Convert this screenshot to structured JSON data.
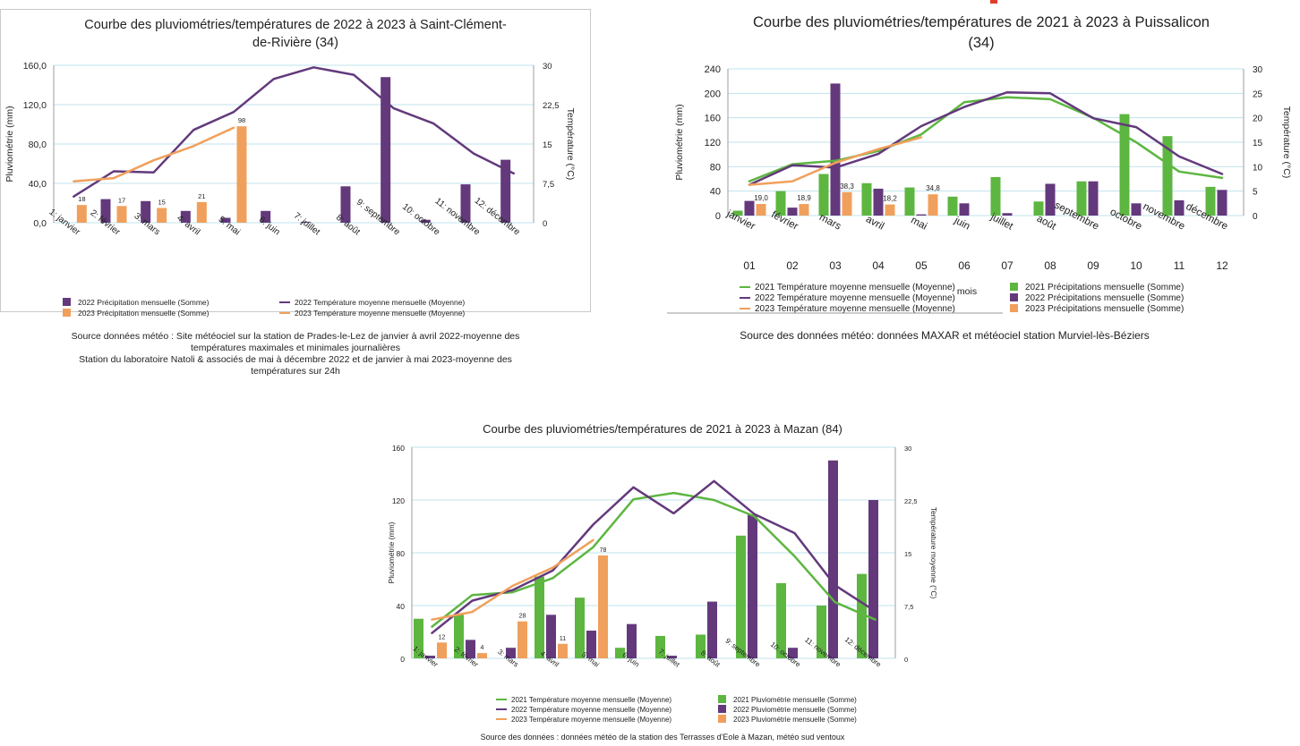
{
  "colors": {
    "purple": "#63397c",
    "orange": "#f0a05c",
    "green": "#5db640",
    "grid": "#bfe3ec",
    "accent": "#e23b2c"
  },
  "chart_data": [
    {
      "type": "bar",
      "title": "Courbe des pluviométries/températures de 2022 à 2023 à Saint-Clément-de-Rivière (34)",
      "title_lines": [
        "Courbe des pluviométries/températures de 2022 à 2023 à Saint-Clément-",
        "de-Rivière (34)"
      ],
      "ylabel": "Pluviométrie (mm)",
      "y2label": "Température (°C)",
      "ylim": [
        0,
        160
      ],
      "y2lim": [
        0,
        30
      ],
      "yticks": [
        "0,0",
        "40,0",
        "80,0",
        "120,0",
        "160,0"
      ],
      "y2ticks": [
        "0",
        "7,5",
        "15",
        "22,5",
        "30"
      ],
      "grid": true,
      "legend_position": "bottom",
      "categories": [
        "1: janvier",
        "2: février",
        "3: mars",
        "4: avril",
        "5: mai",
        "6: juin",
        "7: juillet",
        "8: août",
        "9: septembre",
        "10: octobre",
        "11: novembre",
        "12: décembre"
      ],
      "bars": [
        {
          "name": "2022 Précipitation mensuelle (Somme)",
          "color": "#63397c",
          "values": [
            0,
            24,
            22,
            12,
            5,
            12,
            1,
            37,
            148,
            3,
            39,
            64
          ],
          "labels": []
        },
        {
          "name": "2023 Précipitation mensuelle (Somme)",
          "color": "#f0a05c",
          "values": [
            18,
            17,
            15,
            21,
            98,
            null,
            null,
            null,
            null,
            null,
            null,
            null
          ],
          "labels": [
            "18",
            "17",
            "15",
            "21",
            "98",
            "",
            "",
            "",
            "",
            "",
            "",
            ""
          ]
        }
      ],
      "lines": [
        {
          "name": "2022 Température moyenne mensuelle (Moyenne)",
          "color": "#63397c",
          "values": [
            5.0,
            9.8,
            9.6,
            17.7,
            21.1,
            27.4,
            29.6,
            28.2,
            21.8,
            18.9,
            13.2,
            9.4
          ]
        },
        {
          "name": "2023 Température moyenne mensuelle (Moyenne)",
          "color": "#f0a05c",
          "values": [
            7.9,
            8.5,
            11.9,
            14.6,
            18.1,
            null,
            null,
            null,
            null,
            null,
            null,
            null
          ]
        }
      ],
      "legend_order": [
        0,
        2,
        1,
        3
      ],
      "source_lines": [
        "Source données météo : Site météociel sur la station de Prades-le-Lez de janvier à avril 2022-moyenne des",
        "températures maximales et minimales journalières",
        "Station du laboratoire Natoli & associés  de mai à décembre 2022 et de janvier à mai 2023-moyenne des",
        "températures sur 24h"
      ]
    },
    {
      "type": "bar",
      "title": "Courbe des pluviométries/températures de 2021 à 2023 à Puissalicon (34)",
      "title_lines": [
        "Courbe des pluviométries/températures de 2021 à 2023 à Puissalicon",
        "(34)"
      ],
      "ylabel": "Pluviométrie (mm)",
      "y2label": "Température (°C)",
      "xlabel": "mois",
      "ylim": [
        0,
        240
      ],
      "y2lim": [
        0,
        30
      ],
      "yticks": [
        "0",
        "40",
        "80",
        "120",
        "160",
        "200",
        "240"
      ],
      "y2ticks": [
        "0",
        "5",
        "10",
        "15",
        "20",
        "25",
        "30"
      ],
      "grid": true,
      "legend_position": "bottom",
      "categories": [
        "janvier",
        "février",
        "mars",
        "avril",
        "mai",
        "juin",
        "juillet",
        "août",
        "septembre",
        "octobre",
        "novembre",
        "décembre"
      ],
      "month_numbers": [
        "01",
        "02",
        "03",
        "04",
        "05",
        "06",
        "07",
        "08",
        "09",
        "10",
        "11",
        "12"
      ],
      "bars": [
        {
          "name": "2021 Précipitations mensuelle (Somme)",
          "color": "#5db640",
          "values": [
            8,
            40,
            68,
            53,
            46,
            31,
            63,
            23,
            56,
            166,
            130,
            47
          ],
          "labels": []
        },
        {
          "name": "2022 Précipitations mensuelle (Somme)",
          "color": "#63397c",
          "values": [
            24,
            13,
            216,
            44,
            2,
            20,
            4,
            52,
            56,
            20,
            25,
            42
          ],
          "labels": []
        },
        {
          "name": "2023 Précipitations mensuelle (Somme)",
          "color": "#f0a05c",
          "values": [
            19.0,
            18.9,
            38.3,
            18.2,
            34.8,
            null,
            null,
            null,
            null,
            null,
            null,
            null
          ],
          "labels": [
            "19,0",
            "18,9",
            "38,3",
            "18,2",
            "34,8",
            "",
            "",
            "",
            "",
            "",
            "",
            ""
          ]
        }
      ],
      "lines": [
        {
          "name": "2021 Température moyenne mensuelle (Moyenne)",
          "color": "#5db640",
          "values": [
            7.0,
            10.5,
            11.2,
            13.2,
            16.6,
            23.2,
            24.2,
            23.8,
            20.0,
            15.0,
            9.0,
            7.7
          ]
        },
        {
          "name": "2022 Température moyenne mensuelle (Moyenne)",
          "color": "#63397c",
          "values": [
            6.3,
            10.3,
            9.8,
            12.6,
            18.3,
            22.2,
            25.2,
            25.0,
            19.9,
            18.1,
            12.1,
            8.5
          ]
        },
        {
          "name": "2023 Température moyenne mensuelle (Moyenne)",
          "color": "#f0a05c",
          "values": [
            6.3,
            7.0,
            10.8,
            13.6,
            16.0,
            null,
            null,
            null,
            null,
            null,
            null,
            null
          ]
        }
      ],
      "legend_order": [
        0,
        3,
        1,
        4,
        2,
        5
      ],
      "source_lines": [
        "Source des données météo: données MAXAR et météociel station Murviel-lès-Béziers"
      ]
    },
    {
      "type": "bar",
      "title": "Courbe des pluviométries/températures de 2021 à 2023 à Mazan (84)",
      "title_lines": [
        "Courbe des pluviométries/températures de 2021 à 2023 à Mazan (84)"
      ],
      "ylabel": "Pluviométrie (mm)",
      "y2label": "Température moyenne (°C)",
      "ylim": [
        0,
        160
      ],
      "y2lim": [
        0,
        30
      ],
      "yticks": [
        "0",
        "40",
        "80",
        "120",
        "160"
      ],
      "y2ticks": [
        "0",
        "7,5",
        "15",
        "22,5",
        "30"
      ],
      "grid": true,
      "legend_position": "bottom",
      "categories": [
        "1: janvier",
        "2: février",
        "3: mars",
        "4: avril",
        "5: mai",
        "6: juin",
        "7: juillet",
        "8: août",
        "9: septembre",
        "10: octobre",
        "11: novembre",
        "12: décembre"
      ],
      "bars": [
        {
          "name": "2021 Pluviométrie mensuelle (Somme)",
          "color": "#5db640",
          "values": [
            30,
            33,
            0,
            62,
            46,
            8,
            17,
            18,
            93,
            57,
            40,
            64
          ],
          "labels": []
        },
        {
          "name": "2022 Pluviométrie mensuelle (Somme)",
          "color": "#63397c",
          "values": [
            2,
            14,
            8,
            33,
            21,
            26,
            2,
            43,
            109,
            8,
            150,
            120
          ],
          "labels": []
        },
        {
          "name": "2023 Pluviométrie mensuelle (Somme)",
          "color": "#f0a05c",
          "values": [
            12,
            4,
            28,
            11,
            78,
            null,
            null,
            null,
            null,
            null,
            null,
            null
          ],
          "labels": [
            "12",
            "4",
            "28",
            "11",
            "78",
            "",
            "",
            "",
            "",
            "",
            "",
            ""
          ]
        }
      ],
      "lines": [
        {
          "name": "2021 Température moyenne mensuelle (Moyenne)",
          "color": "#5db640",
          "values": [
            4.5,
            9.0,
            9.4,
            11.4,
            15.8,
            22.6,
            23.5,
            22.5,
            20.2,
            14.5,
            8.0,
            5.5
          ]
        },
        {
          "name": "2022 Température moyenne mensuelle (Moyenne)",
          "color": "#63397c",
          "values": [
            3.6,
            8.2,
            9.7,
            12.5,
            19.0,
            24.3,
            20.6,
            25.2,
            20.5,
            17.8,
            10.4,
            6.7
          ]
        },
        {
          "name": "2023 Température moyenne mensuelle (Moyenne)",
          "color": "#f0a05c",
          "values": [
            5.5,
            6.6,
            10.3,
            12.9,
            16.8,
            null,
            null,
            null,
            null,
            null,
            null,
            null
          ]
        }
      ],
      "legend_order": [
        0,
        3,
        1,
        4,
        2,
        5
      ],
      "source_lines": [
        "Source des données : données météo de la station des Terrasses d'Eole à Mazan, météo sud ventoux"
      ]
    }
  ]
}
